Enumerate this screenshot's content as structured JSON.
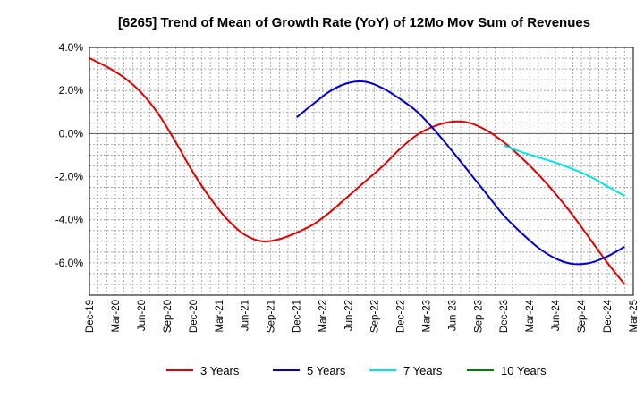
{
  "chart_data": {
    "type": "line",
    "title": "[6265]  Trend of Mean of Growth Rate (YoY) of 12Mo Mov Sum of Revenues",
    "xlabel": "",
    "ylabel": "",
    "ylim": [
      -7.5,
      4.0
    ],
    "yticks": [
      4.0,
      2.0,
      0.0,
      -2.0,
      -4.0,
      -6.0
    ],
    "ytick_labels": [
      "4.0%",
      "2.0%",
      "0.0%",
      "-2.0%",
      "-4.0%",
      "-6.0%"
    ],
    "x_start": "Dec-19",
    "x_count_months": 63,
    "x_tick_labels": [
      "Dec-19",
      "Mar-20",
      "Jun-20",
      "Sep-20",
      "Dec-20",
      "Mar-21",
      "Jun-21",
      "Sep-21",
      "Dec-21",
      "Mar-22",
      "Jun-22",
      "Sep-22",
      "Dec-22",
      "Mar-23",
      "Jun-23",
      "Sep-23",
      "Dec-23",
      "Mar-24",
      "Jun-24",
      "Sep-24",
      "Dec-24",
      "Mar-25"
    ],
    "grid": true,
    "legend_position": "bottom",
    "series": [
      {
        "name": "3 Years",
        "color": "#e00000",
        "points": [
          [
            0,
            3.5
          ],
          [
            2,
            3.1
          ],
          [
            4,
            2.6
          ],
          [
            6,
            1.9
          ],
          [
            8,
            0.9
          ],
          [
            10,
            -0.4
          ],
          [
            12,
            -1.8
          ],
          [
            14,
            -3.0
          ],
          [
            16,
            -4.0
          ],
          [
            18,
            -4.7
          ],
          [
            20,
            -5.0
          ],
          [
            22,
            -4.9
          ],
          [
            24,
            -4.6
          ],
          [
            26,
            -4.2
          ],
          [
            28,
            -3.6
          ],
          [
            30,
            -2.9
          ],
          [
            32,
            -2.2
          ],
          [
            34,
            -1.5
          ],
          [
            36,
            -0.7
          ],
          [
            38,
            -0.05
          ],
          [
            40,
            0.35
          ],
          [
            42,
            0.55
          ],
          [
            44,
            0.5
          ],
          [
            46,
            0.15
          ],
          [
            48,
            -0.4
          ],
          [
            50,
            -1.1
          ],
          [
            52,
            -1.9
          ],
          [
            54,
            -2.8
          ],
          [
            56,
            -3.8
          ],
          [
            58,
            -4.9
          ],
          [
            60,
            -6.0
          ],
          [
            62,
            -7.0
          ]
        ]
      },
      {
        "name": "5 Years",
        "color": "#0000cc",
        "points": [
          [
            24,
            0.75
          ],
          [
            26,
            1.4
          ],
          [
            28,
            2.0
          ],
          [
            30,
            2.35
          ],
          [
            32,
            2.4
          ],
          [
            34,
            2.1
          ],
          [
            36,
            1.6
          ],
          [
            38,
            1.0
          ],
          [
            40,
            0.15
          ],
          [
            42,
            -0.8
          ],
          [
            44,
            -1.8
          ],
          [
            46,
            -2.8
          ],
          [
            48,
            -3.8
          ],
          [
            50,
            -4.6
          ],
          [
            52,
            -5.3
          ],
          [
            54,
            -5.8
          ],
          [
            56,
            -6.05
          ],
          [
            58,
            -6.0
          ],
          [
            60,
            -5.7
          ],
          [
            62,
            -5.25
          ]
        ]
      },
      {
        "name": "7 Years",
        "color": "#00e5e5",
        "points": [
          [
            48,
            -0.55
          ],
          [
            50,
            -0.85
          ],
          [
            52,
            -1.1
          ],
          [
            54,
            -1.35
          ],
          [
            56,
            -1.65
          ],
          [
            58,
            -2.0
          ],
          [
            60,
            -2.45
          ],
          [
            62,
            -2.9
          ]
        ]
      },
      {
        "name": "10 Years",
        "color": "#008000",
        "points": []
      }
    ]
  }
}
